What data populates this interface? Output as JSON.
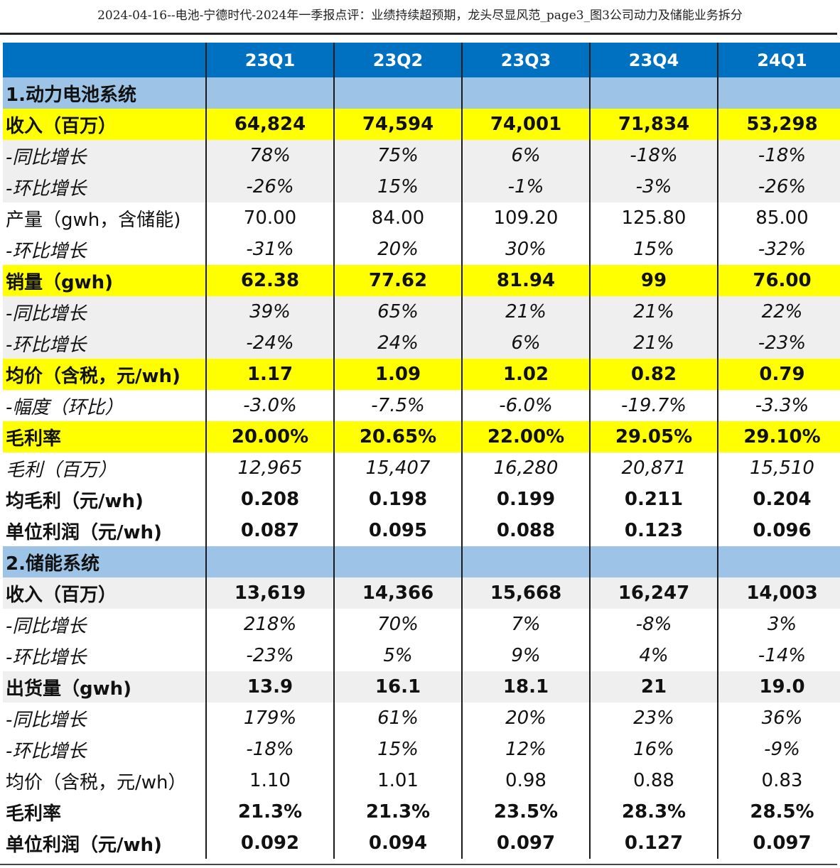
{
  "doc_title": "2024-04-16--电池-宁德时代-2024年一季报点评：业绩持续超预期，龙头尽显风范_page3_图3公司动力及储能业务拆分",
  "columns": [
    "23Q1",
    "23Q2",
    "23Q3",
    "23Q4",
    "24Q1"
  ],
  "rows": [
    {
      "label": "1.动力电池系统",
      "values": [
        "",
        "",
        "",
        "",
        ""
      ],
      "style": "section",
      "weight": "bold",
      "italic": false
    },
    {
      "label": "收入（百万）",
      "values": [
        "64,824",
        "74,594",
        "74,001",
        "71,834",
        "53,298"
      ],
      "style": "yellow",
      "weight": "bold",
      "italic": false
    },
    {
      "label": "-同比增长",
      "values": [
        "78%",
        "75%",
        "6%",
        "-18%",
        "-18%"
      ],
      "style": "gray",
      "weight": "normal",
      "italic": true
    },
    {
      "label": "-环比增长",
      "values": [
        "-26%",
        "15%",
        "-1%",
        "-3%",
        "-26%"
      ],
      "style": "gray",
      "weight": "normal",
      "italic": true
    },
    {
      "label": "产量（gwh，含储能)",
      "values": [
        "70.00",
        "84.00",
        "109.20",
        "125.80",
        "85.00"
      ],
      "style": "white",
      "weight": "normal",
      "italic": false
    },
    {
      "label": "-环比增长",
      "values": [
        "-31%",
        "20%",
        "30%",
        "15%",
        "-32%"
      ],
      "style": "white",
      "weight": "normal",
      "italic": true
    },
    {
      "label": "销量（gwh)",
      "values": [
        "62.38",
        "77.62",
        "81.94",
        "99",
        "76.00"
      ],
      "style": "yellow",
      "weight": "bold",
      "italic": false
    },
    {
      "label": "-同比增长",
      "values": [
        "39%",
        "65%",
        "21%",
        "21%",
        "22%"
      ],
      "style": "gray",
      "weight": "normal",
      "italic": true
    },
    {
      "label": "-环比增长",
      "values": [
        "-24%",
        "24%",
        "6%",
        "21%",
        "-23%"
      ],
      "style": "gray",
      "weight": "normal",
      "italic": true
    },
    {
      "label": "均价（含税，元/wh)",
      "values": [
        "1.17",
        "1.09",
        "1.02",
        "0.82",
        "0.79"
      ],
      "style": "yellow",
      "weight": "bold",
      "italic": false
    },
    {
      "label": "-幅度（环比）",
      "values": [
        "-3.0%",
        "-7.5%",
        "-6.0%",
        "-19.7%",
        "-3.3%"
      ],
      "style": "white",
      "weight": "normal",
      "italic": true
    },
    {
      "label": "毛利率",
      "values": [
        "20.00%",
        "20.65%",
        "22.00%",
        "29.05%",
        "29.10%"
      ],
      "style": "yellow",
      "weight": "bold",
      "italic": false
    },
    {
      "label": "毛利（百万）",
      "values": [
        "12,965",
        "15,407",
        "16,280",
        "20,871",
        "15,510"
      ],
      "style": "white",
      "weight": "normal",
      "italic": true
    },
    {
      "label": "均毛利（元/wh)",
      "values": [
        "0.208",
        "0.198",
        "0.199",
        "0.211",
        "0.204"
      ],
      "style": "white",
      "weight": "bold",
      "italic": false
    },
    {
      "label": "单位利润（元/wh)",
      "values": [
        "0.087",
        "0.095",
        "0.088",
        "0.123",
        "0.096"
      ],
      "style": "white",
      "weight": "bold",
      "italic": false
    },
    {
      "label": "2.储能系统",
      "values": [
        "",
        "",
        "",
        "",
        ""
      ],
      "style": "section",
      "weight": "bold",
      "italic": false
    },
    {
      "label": "收入（百万）",
      "values": [
        "13,619",
        "14,366",
        "15,668",
        "16,247",
        "14,003"
      ],
      "style": "gray",
      "weight": "bold",
      "italic": false
    },
    {
      "label": "-同比增长",
      "values": [
        "218%",
        "70%",
        "7%",
        "-8%",
        "3%"
      ],
      "style": "white",
      "weight": "normal",
      "italic": true
    },
    {
      "label": "-环比增长",
      "values": [
        "-23%",
        "5%",
        "9%",
        "4%",
        "-14%"
      ],
      "style": "white",
      "weight": "normal",
      "italic": true
    },
    {
      "label": "出货量（gwh)",
      "values": [
        "13.9",
        "16.1",
        "18.1",
        "21",
        "19.0"
      ],
      "style": "gray",
      "weight": "bold",
      "italic": false
    },
    {
      "label": "-同比增长",
      "values": [
        "179%",
        "61%",
        "20%",
        "23%",
        "36%"
      ],
      "style": "white",
      "weight": "normal",
      "italic": true
    },
    {
      "label": "-环比增长",
      "values": [
        "-18%",
        "15%",
        "12%",
        "16%",
        "-9%"
      ],
      "style": "white",
      "weight": "normal",
      "italic": true
    },
    {
      "label": "均价（含税，元/wh）",
      "values": [
        "1.10",
        "1.01",
        "0.98",
        "0.88",
        "0.83"
      ],
      "style": "white",
      "weight": "normal",
      "italic": false
    },
    {
      "label": "毛利率",
      "values": [
        "21.3%",
        "21.3%",
        "23.5%",
        "28.3%",
        "28.5%"
      ],
      "style": "white",
      "weight": "bold",
      "italic": false
    },
    {
      "label": "单位利润（元/wh)",
      "values": [
        "0.092",
        "0.094",
        "0.097",
        "0.127",
        "0.097"
      ],
      "style": "white",
      "weight": "bold",
      "italic": false
    }
  ],
  "colors": {
    "header_bg": "#0070c0",
    "section_bg": "#9dc3e6",
    "highlight_bg": "#ffff00",
    "stripe_bg": "#efefef"
  }
}
